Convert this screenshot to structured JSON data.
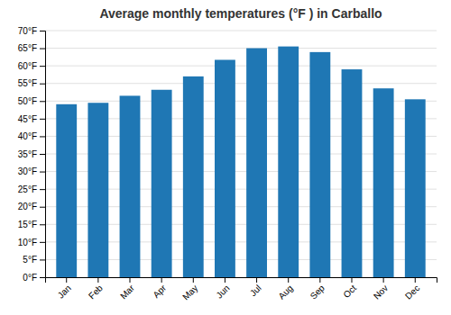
{
  "chart_data": {
    "type": "bar",
    "title": "Average monthly temperatures (°F ) in Carballo",
    "categories": [
      "Jan",
      "Feb",
      "Mar",
      "Apr",
      "May",
      "Jun",
      "Jul",
      "Aug",
      "Sep",
      "Oct",
      "Nov",
      "Dec"
    ],
    "values": [
      49.1,
      49.5,
      51.5,
      53.2,
      57.0,
      61.7,
      65.0,
      65.5,
      63.9,
      59.0,
      53.6,
      50.5
    ],
    "ylim": [
      0,
      70
    ],
    "yticks": [
      {
        "value": 0,
        "label": "0°F"
      },
      {
        "value": 5,
        "label": "5°F"
      },
      {
        "value": 10,
        "label": "10°F"
      },
      {
        "value": 15,
        "label": "15°F"
      },
      {
        "value": 20,
        "label": "20°F"
      },
      {
        "value": 25,
        "label": "25°F"
      },
      {
        "value": 30,
        "label": "30°F"
      },
      {
        "value": 35,
        "label": "35°F"
      },
      {
        "value": 40,
        "label": "40°F"
      },
      {
        "value": 45,
        "label": "45°F"
      },
      {
        "value": 50,
        "label": "50°F"
      },
      {
        "value": 55,
        "label": "55°F"
      },
      {
        "value": 60,
        "label": "60°F"
      },
      {
        "value": 65,
        "label": "65°F"
      },
      {
        "value": 70,
        "label": "70°F"
      }
    ],
    "grid": true
  }
}
